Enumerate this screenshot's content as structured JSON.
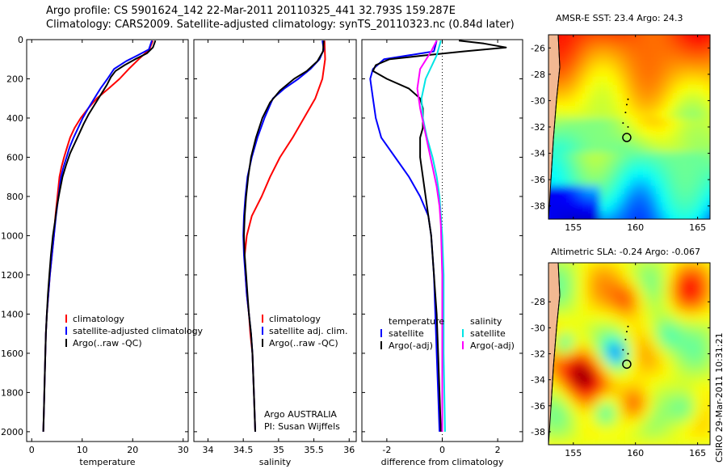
{
  "header": {
    "line1": "Argo profile: CS 5901624_142 22-Mar-2011 20110325_441 32.793S 159.287E",
    "line2": "Climatology: CARS2009. Satellite-adjusted climatology: synTS_20110323.nc (0.84d later)"
  },
  "chart_data": [
    {
      "type": "line",
      "xlabel": "temperature",
      "ylabel": "",
      "xlim": [
        -1,
        31
      ],
      "ylim": [
        0,
        2050
      ],
      "y_reversed": true,
      "xticks": [
        0,
        10,
        20,
        30
      ],
      "yticks": [
        0,
        200,
        400,
        600,
        800,
        1000,
        1200,
        1400,
        1600,
        1800,
        2000
      ],
      "legend": {
        "placement": "lower-right",
        "entries": [
          "climatology",
          "satellite-adjusted climatology",
          "Argo(..raw -QC)"
        ]
      },
      "series": [
        {
          "name": "climatology",
          "color": "#ff0000",
          "points": [
            [
              24.0,
              5
            ],
            [
              23.3,
              50
            ],
            [
              21.2,
              100
            ],
            [
              19.2,
              150
            ],
            [
              17.4,
              200
            ],
            [
              15.2,
              250
            ],
            [
              12.9,
              300
            ],
            [
              11.2,
              350
            ],
            [
              9.7,
              400
            ],
            [
              8.5,
              450
            ],
            [
              7.6,
              500
            ],
            [
              7.0,
              550
            ],
            [
              6.4,
              600
            ],
            [
              5.9,
              650
            ],
            [
              5.5,
              700
            ],
            [
              5.1,
              800
            ],
            [
              4.7,
              900
            ],
            [
              4.4,
              1000
            ],
            [
              4.0,
              1100
            ],
            [
              3.6,
              1200
            ],
            [
              3.3,
              1300
            ],
            [
              3.0,
              1400
            ],
            [
              2.8,
              1500
            ],
            [
              2.6,
              1700
            ],
            [
              2.4,
              1900
            ],
            [
              2.3,
              2000
            ]
          ]
        },
        {
          "name": "satellite-adjusted climatology",
          "color": "#0000ff",
          "points": [
            [
              23.8,
              5
            ],
            [
              23.2,
              50
            ],
            [
              21.0,
              80
            ],
            [
              18.7,
              110
            ],
            [
              16.3,
              150
            ],
            [
              15.0,
              200
            ],
            [
              13.6,
              250
            ],
            [
              12.4,
              300
            ],
            [
              11.2,
              350
            ],
            [
              10.1,
              400
            ],
            [
              9.2,
              450
            ],
            [
              8.3,
              500
            ],
            [
              7.5,
              550
            ],
            [
              6.9,
              600
            ],
            [
              6.3,
              650
            ],
            [
              5.8,
              700
            ],
            [
              5.3,
              800
            ],
            [
              4.8,
              900
            ],
            [
              4.4,
              1000
            ],
            [
              4.0,
              1100
            ],
            [
              3.6,
              1200
            ],
            [
              3.3,
              1300
            ],
            [
              3.0,
              1400
            ],
            [
              2.8,
              1500
            ],
            [
              2.6,
              1700
            ],
            [
              2.4,
              1900
            ],
            [
              2.3,
              2000
            ]
          ]
        },
        {
          "name": "Argo(..raw -QC)",
          "color": "#000000",
          "points": [
            [
              24.5,
              5
            ],
            [
              24.0,
              40
            ],
            [
              22.8,
              70
            ],
            [
              20.5,
              100
            ],
            [
              18.4,
              130
            ],
            [
              16.6,
              160
            ],
            [
              15.7,
              190
            ],
            [
              14.9,
              230
            ],
            [
              13.7,
              280
            ],
            [
              12.5,
              330
            ],
            [
              11.3,
              380
            ],
            [
              10.3,
              430
            ],
            [
              9.4,
              480
            ],
            [
              8.5,
              530
            ],
            [
              7.6,
              580
            ],
            [
              6.8,
              640
            ],
            [
              6.1,
              700
            ],
            [
              5.5,
              780
            ],
            [
              5.0,
              850
            ],
            [
              4.6,
              930
            ],
            [
              4.2,
              1000
            ],
            [
              3.8,
              1100
            ],
            [
              3.5,
              1200
            ],
            [
              3.2,
              1300
            ],
            [
              3.0,
              1400
            ],
            [
              2.8,
              1500
            ],
            [
              2.6,
              1700
            ],
            [
              2.4,
              1900
            ],
            [
              2.3,
              2000
            ]
          ]
        }
      ]
    },
    {
      "type": "line",
      "xlabel": "salinity",
      "ylabel": "",
      "xlim": [
        33.8,
        36.1
      ],
      "ylim": [
        0,
        2050
      ],
      "y_reversed": true,
      "xticks": [
        34,
        34.5,
        35,
        35.5,
        36
      ],
      "tick_labels": [
        "34",
        "34.5",
        "35",
        "35.5",
        "36"
      ],
      "legend": {
        "placement": "lower-right",
        "entries": [
          "climatology",
          "satellite adj. clim.",
          "Argo(..raw -QC)"
        ]
      },
      "annotations": [
        "Argo AUSTRALIA",
        "PI: Susan Wijffels"
      ],
      "series": [
        {
          "name": "climatology",
          "color": "#ff0000",
          "points": [
            [
              35.65,
              5
            ],
            [
              35.66,
              100
            ],
            [
              35.62,
              200
            ],
            [
              35.52,
              300
            ],
            [
              35.36,
              400
            ],
            [
              35.2,
              500
            ],
            [
              35.02,
              600
            ],
            [
              34.88,
              700
            ],
            [
              34.76,
              800
            ],
            [
              34.62,
              900
            ],
            [
              34.55,
              1000
            ],
            [
              34.52,
              1100
            ],
            [
              34.53,
              1200
            ],
            [
              34.55,
              1300
            ],
            [
              34.58,
              1400
            ],
            [
              34.6,
              1500
            ],
            [
              34.63,
              1600
            ],
            [
              34.65,
              1800
            ],
            [
              34.67,
              2000
            ]
          ]
        },
        {
          "name": "satellite adj. clim.",
          "color": "#0000ff",
          "points": [
            [
              35.62,
              5
            ],
            [
              35.64,
              50
            ],
            [
              35.58,
              100
            ],
            [
              35.45,
              150
            ],
            [
              35.28,
              200
            ],
            [
              35.08,
              250
            ],
            [
              34.92,
              300
            ],
            [
              34.8,
              400
            ],
            [
              34.7,
              500
            ],
            [
              34.62,
              600
            ],
            [
              34.56,
              700
            ],
            [
              34.53,
              800
            ],
            [
              34.51,
              900
            ],
            [
              34.5,
              1000
            ],
            [
              34.51,
              1100
            ],
            [
              34.53,
              1200
            ],
            [
              34.55,
              1300
            ],
            [
              34.58,
              1400
            ],
            [
              34.61,
              1500
            ],
            [
              34.63,
              1600
            ],
            [
              34.65,
              1800
            ],
            [
              34.67,
              2000
            ]
          ]
        },
        {
          "name": "Argo(..raw -QC)",
          "color": "#000000",
          "points": [
            [
              35.64,
              5
            ],
            [
              35.63,
              60
            ],
            [
              35.55,
              110
            ],
            [
              35.4,
              160
            ],
            [
              35.22,
              200
            ],
            [
              35.02,
              260
            ],
            [
              34.88,
              320
            ],
            [
              34.77,
              400
            ],
            [
              34.68,
              500
            ],
            [
              34.61,
              600
            ],
            [
              34.57,
              700
            ],
            [
              34.54,
              800
            ],
            [
              34.52,
              900
            ],
            [
              34.51,
              1000
            ],
            [
              34.52,
              1100
            ],
            [
              34.54,
              1200
            ],
            [
              34.56,
              1300
            ],
            [
              34.58,
              1400
            ],
            [
              34.61,
              1500
            ],
            [
              34.63,
              1600
            ],
            [
              34.65,
              1800
            ],
            [
              34.67,
              2000
            ]
          ]
        }
      ]
    },
    {
      "type": "line",
      "xlabel": "difference from climatology",
      "ylabel": "",
      "xlim": [
        -2.9,
        2.9
      ],
      "ylim": [
        0,
        2050
      ],
      "y_reversed": true,
      "xticks": [
        -2,
        0,
        2
      ],
      "zero_reference_line": true,
      "legend": {
        "placement": "lower",
        "groups": [
          {
            "heading": "temperature",
            "entries": [
              "satellite",
              "Argo(-adj)"
            ]
          },
          {
            "heading": "salinity",
            "entries": [
              "satellite",
              "Argo(-adj)"
            ]
          }
        ]
      },
      "series": [
        {
          "name": "temperature satellite",
          "color": "#0000ff",
          "points": [
            [
              -0.2,
              5
            ],
            [
              -0.3,
              60
            ],
            [
              -2.1,
              100
            ],
            [
              -2.5,
              150
            ],
            [
              -2.6,
              200
            ],
            [
              -2.5,
              300
            ],
            [
              -2.4,
              400
            ],
            [
              -2.2,
              500
            ],
            [
              -1.7,
              600
            ],
            [
              -1.2,
              700
            ],
            [
              -0.8,
              800
            ],
            [
              -0.5,
              900
            ],
            [
              -0.4,
              1000
            ],
            [
              -0.3,
              1200
            ],
            [
              -0.25,
              1400
            ],
            [
              -0.2,
              1600
            ],
            [
              -0.15,
              1800
            ],
            [
              -0.1,
              2000
            ]
          ]
        },
        {
          "name": "temperature Argo(-adj)",
          "color": "#000000",
          "points": [
            [
              0.6,
              5
            ],
            [
              1.5,
              20
            ],
            [
              2.3,
              40
            ],
            [
              0.8,
              60
            ],
            [
              -0.6,
              80
            ],
            [
              -1.9,
              100
            ],
            [
              -2.4,
              130
            ],
            [
              -2.5,
              160
            ],
            [
              -2.0,
              200
            ],
            [
              -1.2,
              250
            ],
            [
              -0.8,
              300
            ],
            [
              -0.7,
              350
            ],
            [
              -0.7,
              400
            ],
            [
              -0.7,
              450
            ],
            [
              -0.8,
              500
            ],
            [
              -0.8,
              550
            ],
            [
              -0.8,
              600
            ],
            [
              -0.7,
              700
            ],
            [
              -0.6,
              800
            ],
            [
              -0.5,
              900
            ],
            [
              -0.4,
              1000
            ],
            [
              -0.3,
              1200
            ],
            [
              -0.2,
              1400
            ],
            [
              -0.15,
              1600
            ],
            [
              -0.1,
              1800
            ],
            [
              -0.05,
              2000
            ]
          ]
        },
        {
          "name": "salinity satellite",
          "color": "#00e5e5",
          "points": [
            [
              -0.05,
              5
            ],
            [
              -0.2,
              80
            ],
            [
              -0.6,
              200
            ],
            [
              -0.75,
              300
            ],
            [
              -0.7,
              400
            ],
            [
              -0.55,
              500
            ],
            [
              -0.35,
              600
            ],
            [
              -0.2,
              700
            ],
            [
              -0.1,
              800
            ],
            [
              -0.05,
              900
            ],
            [
              0.0,
              1000
            ],
            [
              0.05,
              1200
            ],
            [
              0.05,
              1600
            ],
            [
              0.1,
              2000
            ]
          ]
        },
        {
          "name": "salinity Argo(-adj)",
          "color": "#ff00ff",
          "points": [
            [
              -0.2,
              5
            ],
            [
              -0.4,
              60
            ],
            [
              -0.8,
              150
            ],
            [
              -0.9,
              250
            ],
            [
              -0.8,
              350
            ],
            [
              -0.65,
              450
            ],
            [
              -0.5,
              550
            ],
            [
              -0.35,
              650
            ],
            [
              -0.2,
              750
            ],
            [
              -0.1,
              850
            ],
            [
              -0.05,
              950
            ],
            [
              0.0,
              1200
            ],
            [
              0.0,
              1600
            ],
            [
              0.0,
              2000
            ]
          ]
        }
      ]
    },
    {
      "type": "heatmap",
      "title": "AMSR-E SST: 23.4  Argo: 24.3",
      "xlim": [
        153,
        166
      ],
      "ylim": [
        -39,
        -25
      ],
      "xticks": [
        155,
        160,
        165
      ],
      "yticks": [
        -26,
        -28,
        -30,
        -32,
        -34,
        -36,
        -38
      ],
      "argo_position": [
        159.3,
        -32.8
      ],
      "colormap": [
        "#00008f",
        "#0000ff",
        "#00ffff",
        "#80ff80",
        "#ffff00",
        "#ff8000",
        "#ff0000",
        "#800000"
      ]
    },
    {
      "type": "heatmap",
      "title": "Altimetric SLA: -0.24  Argo: -0.067",
      "xlim": [
        153,
        166
      ],
      "ylim": [
        -39,
        -25
      ],
      "xticks": [
        155,
        160,
        165
      ],
      "yticks": [
        -28,
        -30,
        -32,
        -34,
        -36,
        -38
      ],
      "argo_position": [
        159.3,
        -32.8
      ],
      "colormap": [
        "#00008f",
        "#0000ff",
        "#00ffff",
        "#80ff80",
        "#ffff00",
        "#ff8000",
        "#ff0000",
        "#800000"
      ]
    }
  ],
  "credit": "CSIRO 29-Mar-2011 10:31:21"
}
